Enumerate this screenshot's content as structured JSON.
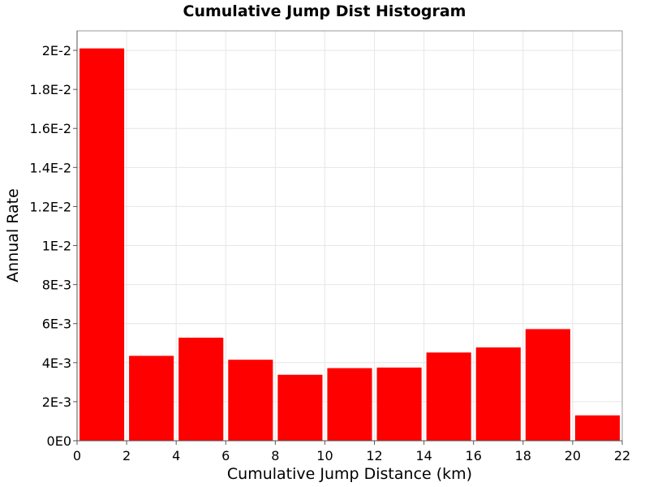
{
  "chart_data": {
    "type": "bar",
    "title": "Cumulative Jump Dist Histogram",
    "xlabel": "Cumulative Jump Distance (km)",
    "ylabel": "Annual Rate",
    "xlim": [
      0,
      22
    ],
    "ylim": [
      0,
      0.021
    ],
    "grid": true,
    "bar_color": "#ff0000",
    "bins": [
      {
        "x0": 0,
        "x1": 2,
        "value": 0.0201
      },
      {
        "x0": 2,
        "x1": 4,
        "value": 0.00435
      },
      {
        "x0": 4,
        "x1": 6,
        "value": 0.00528
      },
      {
        "x0": 6,
        "x1": 8,
        "value": 0.00415
      },
      {
        "x0": 8,
        "x1": 10,
        "value": 0.00338
      },
      {
        "x0": 10,
        "x1": 12,
        "value": 0.00372
      },
      {
        "x0": 12,
        "x1": 14,
        "value": 0.00375
      },
      {
        "x0": 14,
        "x1": 16,
        "value": 0.00452
      },
      {
        "x0": 16,
        "x1": 18,
        "value": 0.00478
      },
      {
        "x0": 18,
        "x1": 20,
        "value": 0.00572
      },
      {
        "x0": 20,
        "x1": 22,
        "value": 0.0013
      }
    ],
    "x_ticks": [
      {
        "value": 0,
        "label": "0"
      },
      {
        "value": 2,
        "label": "2"
      },
      {
        "value": 4,
        "label": "4"
      },
      {
        "value": 6,
        "label": "6"
      },
      {
        "value": 8,
        "label": "8"
      },
      {
        "value": 10,
        "label": "10"
      },
      {
        "value": 12,
        "label": "12"
      },
      {
        "value": 14,
        "label": "14"
      },
      {
        "value": 16,
        "label": "16"
      },
      {
        "value": 18,
        "label": "18"
      },
      {
        "value": 20,
        "label": "20"
      },
      {
        "value": 22,
        "label": "22"
      }
    ],
    "y_ticks": [
      {
        "value": 0,
        "label": "0E0"
      },
      {
        "value": 0.002,
        "label": "2E-3"
      },
      {
        "value": 0.004,
        "label": "4E-3"
      },
      {
        "value": 0.006,
        "label": "6E-3"
      },
      {
        "value": 0.008,
        "label": "8E-3"
      },
      {
        "value": 0.01,
        "label": "1E-2"
      },
      {
        "value": 0.012,
        "label": "1.2E-2"
      },
      {
        "value": 0.014,
        "label": "1.4E-2"
      },
      {
        "value": 0.016,
        "label": "1.6E-2"
      },
      {
        "value": 0.018,
        "label": "1.8E-2"
      },
      {
        "value": 0.02,
        "label": "2E-2"
      }
    ]
  }
}
